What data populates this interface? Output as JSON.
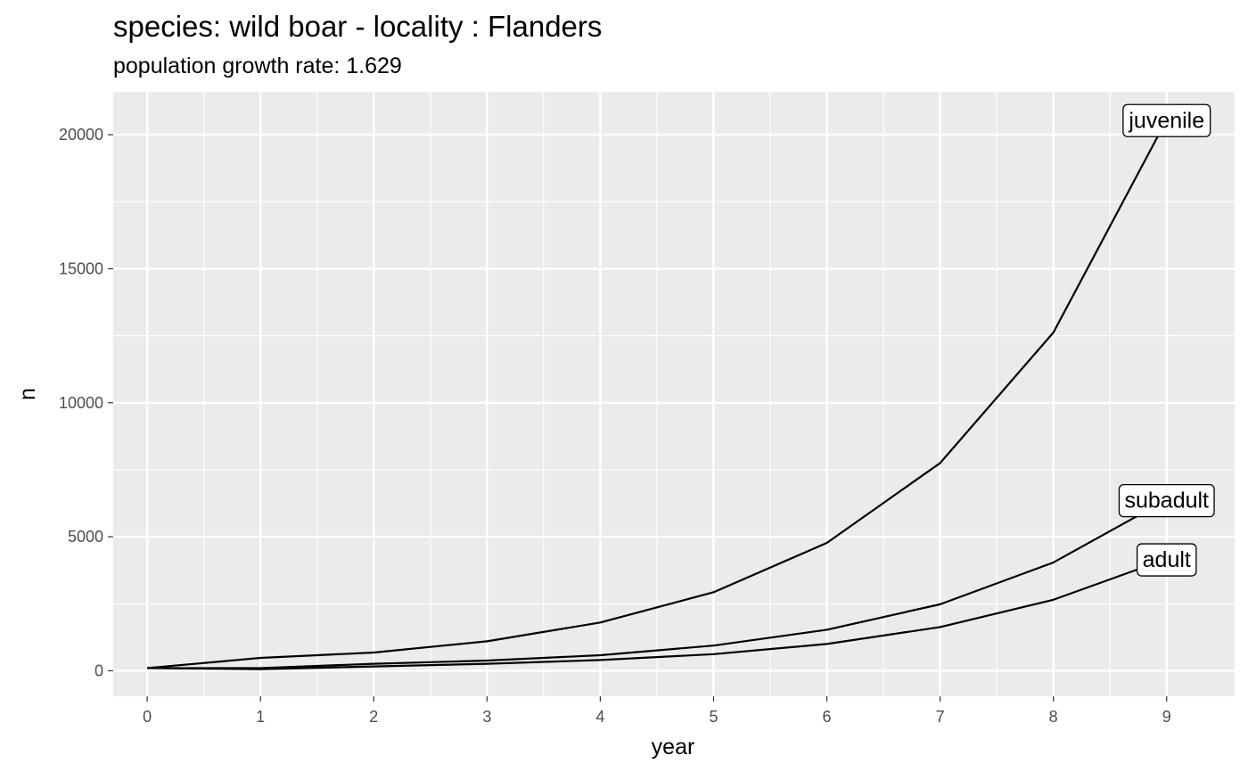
{
  "chart_data": {
    "type": "line",
    "title": "species: wild boar - locality : Flanders",
    "subtitle": "population growth rate: 1.629",
    "xlabel": "year",
    "ylabel": "n",
    "xlim": [
      -0.3,
      9.6
    ],
    "ylim": [
      -950,
      21600
    ],
    "x_ticks": [
      0,
      1,
      2,
      3,
      4,
      5,
      6,
      7,
      8,
      9
    ],
    "y_ticks": [
      0,
      5000,
      10000,
      15000,
      20000
    ],
    "grid": true,
    "legend": "none",
    "x": [
      0,
      1,
      2,
      3,
      4,
      5,
      6,
      7,
      8,
      9
    ],
    "series": [
      {
        "name": "juvenile",
        "values": [
          100,
          480,
          680,
          1100,
          1800,
          2930,
          4770,
          7750,
          12620,
          20560
        ]
      },
      {
        "name": "subadult",
        "values": [
          100,
          100,
          260,
          380,
          580,
          940,
          1530,
          2480,
          4040,
          6380
        ]
      },
      {
        "name": "adult",
        "values": [
          100,
          60,
          160,
          260,
          400,
          620,
          1000,
          1630,
          2650,
          4170
        ]
      }
    ]
  }
}
